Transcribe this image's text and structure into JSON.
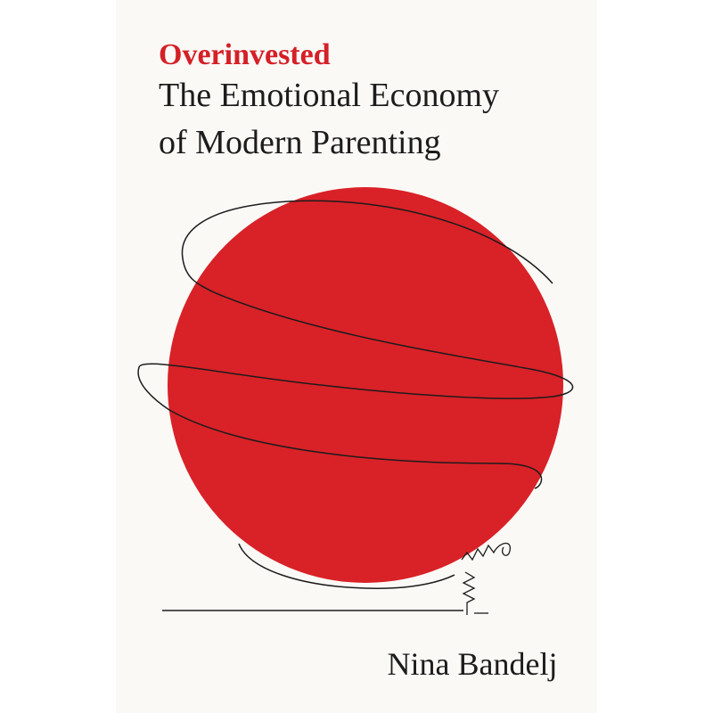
{
  "cover": {
    "title": "Overinvested",
    "subtitle_lines": [
      "The Emotional Economy",
      "of Modern Parenting"
    ],
    "author": "Nina Bandelj"
  }
}
